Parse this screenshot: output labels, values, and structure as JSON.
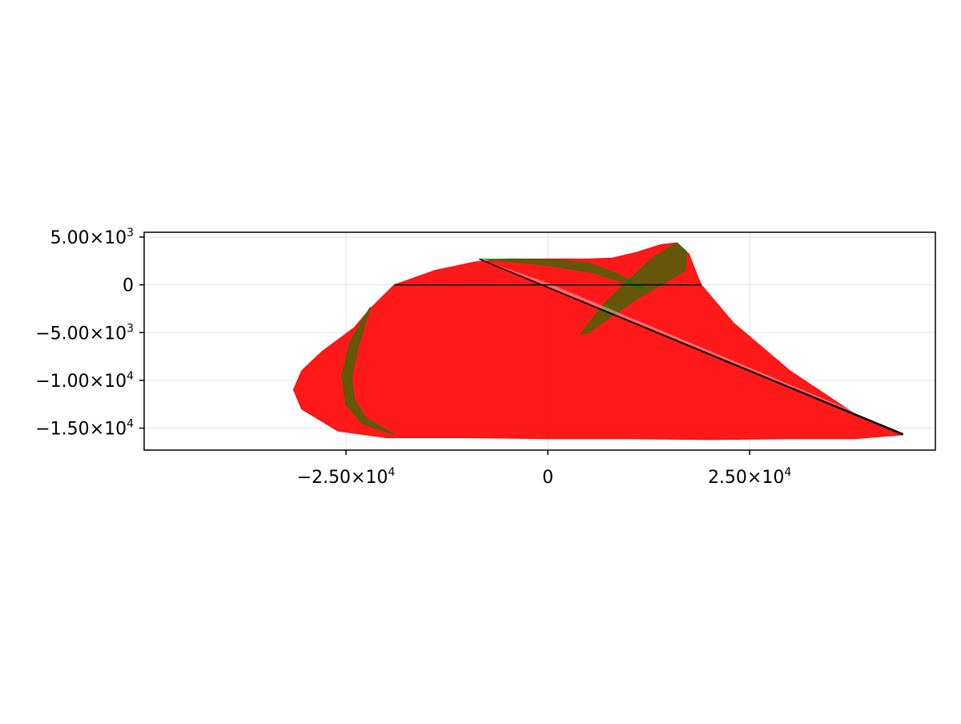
{
  "chart_data": {
    "type": "line",
    "title": "",
    "xlabel": "",
    "ylabel": "",
    "xlim": [
      -50000,
      48000
    ],
    "ylim": [
      -17300,
      5500
    ],
    "grid": true,
    "legend": "none",
    "x_ticks": [
      {
        "value": -25000,
        "mantissa": "−2.50×10",
        "exp": "4"
      },
      {
        "value": 0,
        "mantissa": "0",
        "exp": ""
      },
      {
        "value": 25000,
        "mantissa": "2.50×10",
        "exp": "4"
      }
    ],
    "y_ticks": [
      {
        "value": 5000,
        "mantissa": "5.00×10",
        "exp": "3"
      },
      {
        "value": 0,
        "mantissa": "0",
        "exp": ""
      },
      {
        "value": -5000,
        "mantissa": "−5.00×10",
        "exp": "3"
      },
      {
        "value": -10000,
        "mantissa": "−1.00×10",
        "exp": "4"
      },
      {
        "value": -15000,
        "mantissa": "−1.50×10",
        "exp": "4"
      }
    ],
    "series": [
      {
        "color": "#ff0000",
        "kind": "filled-region",
        "points": [
          [
            -19000,
            0
          ],
          [
            -14000,
            1500
          ],
          [
            -9000,
            2400
          ],
          [
            -5000,
            2700
          ],
          [
            0,
            2700
          ],
          [
            5000,
            2700
          ],
          [
            8000,
            2800
          ],
          [
            11000,
            3400
          ],
          [
            14000,
            4200
          ],
          [
            16000,
            4400
          ],
          [
            17500,
            3200
          ],
          [
            18500,
            1000
          ],
          [
            19000,
            0
          ],
          [
            23000,
            -4000
          ],
          [
            30000,
            -9000
          ],
          [
            38000,
            -13500
          ],
          [
            44000,
            -15700
          ],
          [
            38000,
            -16100
          ],
          [
            30000,
            -16100
          ],
          [
            20000,
            -16200
          ],
          [
            10000,
            -16100
          ],
          [
            0,
            -16100
          ],
          [
            -10000,
            -16000
          ],
          [
            -20000,
            -16000
          ],
          [
            -26000,
            -15300
          ],
          [
            -30500,
            -13000
          ],
          [
            -31500,
            -11000
          ],
          [
            -30500,
            -9000
          ],
          [
            -28000,
            -7000
          ],
          [
            -24000,
            -4500
          ],
          [
            -22000,
            -2500
          ],
          [
            -19000,
            0
          ]
        ]
      },
      {
        "color": "#008000",
        "kind": "band",
        "points": [
          [
            -22000,
            -2300
          ],
          [
            -24500,
            -6000
          ],
          [
            -25500,
            -9500
          ],
          [
            -25000,
            -12500
          ],
          [
            -23000,
            -14500
          ],
          [
            -19000,
            -15700
          ],
          [
            -20000,
            -15200
          ],
          [
            -22500,
            -14000
          ],
          [
            -24000,
            -12000
          ],
          [
            -24300,
            -9500
          ],
          [
            -23500,
            -6500
          ],
          [
            -22000,
            -2300
          ]
        ]
      },
      {
        "color": "#008000",
        "kind": "band",
        "points": [
          [
            -8500,
            2700
          ],
          [
            -4000,
            2700
          ],
          [
            1000,
            2600
          ],
          [
            5000,
            2300
          ],
          [
            8500,
            1200
          ],
          [
            12000,
            -500
          ],
          [
            9500,
            200
          ],
          [
            5500,
            1300
          ],
          [
            1000,
            1900
          ],
          [
            -4000,
            2400
          ],
          [
            -8500,
            2700
          ]
        ]
      },
      {
        "color": "#008000",
        "kind": "band",
        "points": [
          [
            4000,
            -5200
          ],
          [
            7000,
            -2000
          ],
          [
            10000,
            500
          ],
          [
            13000,
            2800
          ],
          [
            16000,
            4400
          ],
          [
            17200,
            3500
          ],
          [
            17000,
            1500
          ],
          [
            14000,
            0
          ],
          [
            11000,
            -1500
          ],
          [
            8000,
            -3200
          ],
          [
            5000,
            -5000
          ],
          [
            4000,
            -5200
          ]
        ]
      },
      {
        "color": "#000000",
        "kind": "line",
        "points": [
          [
            -19000,
            0
          ],
          [
            19000,
            0
          ]
        ]
      },
      {
        "color": "#000000",
        "kind": "line",
        "points": [
          [
            -8500,
            2700
          ],
          [
            44000,
            -15600
          ],
          [
            -8500,
            2700
          ],
          [
            44000,
            -15700
          ]
        ]
      }
    ]
  }
}
